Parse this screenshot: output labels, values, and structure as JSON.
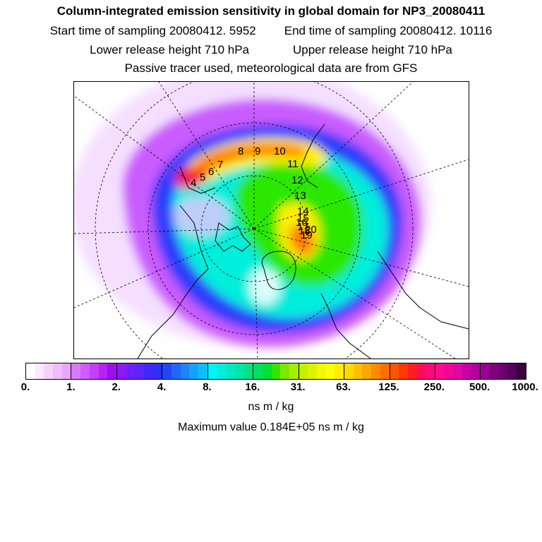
{
  "title": "Column-integrated emission sensitivity in global domain for NP3_20080411",
  "sampling": {
    "start": "Start time of sampling 20080412.  5952",
    "end": "End time of sampling 20080412. 10116"
  },
  "release": {
    "lower": "Lower release height  710 hPa",
    "upper": "Upper release height  710 hPa"
  },
  "tracer_note": "Passive tracer used, meteorological data are from GFS",
  "colorbar": {
    "tick_labels": [
      "0.",
      "1.",
      "2.",
      "4.",
      "8.",
      "16.",
      "31.",
      "63.",
      "125.",
      "250.",
      "500.",
      "1000."
    ],
    "colors": [
      "#ffffff",
      "#fbe9ff",
      "#f4d2ff",
      "#eebdff",
      "#e8a8ff",
      "#d979ff",
      "#cf5cff",
      "#c43ff9",
      "#b822f6",
      "#a00cf4",
      "#8a19ff",
      "#6f1ffd",
      "#5a25fb",
      "#4028fa",
      "#2e2ff8",
      "#2246fb",
      "#2366fd",
      "#1e84ff",
      "#14a0ff",
      "#0ebeff",
      "#00f4ff",
      "#00efdf",
      "#00eabf",
      "#00e6a6",
      "#00e37e",
      "#00e05e",
      "#00e02e",
      "#31e500",
      "#7fe900",
      "#a7ed00",
      "#c4f100",
      "#dcf300",
      "#f2f800",
      "#ffff00",
      "#ffed00",
      "#ffd900",
      "#ffbf00",
      "#ffa500",
      "#ff8a00",
      "#ff6f00",
      "#ff5500",
      "#ff3a00",
      "#ff1f20",
      "#ff0a5a",
      "#ff0a7a",
      "#ff0a8f",
      "#f0089a",
      "#e006a3",
      "#c800a8",
      "#b0009e",
      "#980092",
      "#800080",
      "#6a0070",
      "#55005a",
      "#400040"
    ],
    "unit": "ns m / kg"
  },
  "maximum_value": "Maximum value  0.184E+05 ns m / kg",
  "map": {
    "track_labels": [
      "4",
      "5",
      "6",
      "7",
      "8",
      "9",
      "10",
      "11",
      "12",
      "13",
      "14",
      "15",
      "16",
      "17",
      "18",
      "19",
      "20"
    ],
    "field_colors": {
      "background": "#ffffff",
      "light_purple": "#ecc5ff",
      "purple": "#c95cff",
      "blue": "#2c3dfb",
      "cyan": "#00eedc",
      "green": "#2ce800",
      "yellow": "#ffef00",
      "orange": "#ff7a00",
      "red": "#ff2020",
      "magenta": "#e9009c"
    }
  }
}
